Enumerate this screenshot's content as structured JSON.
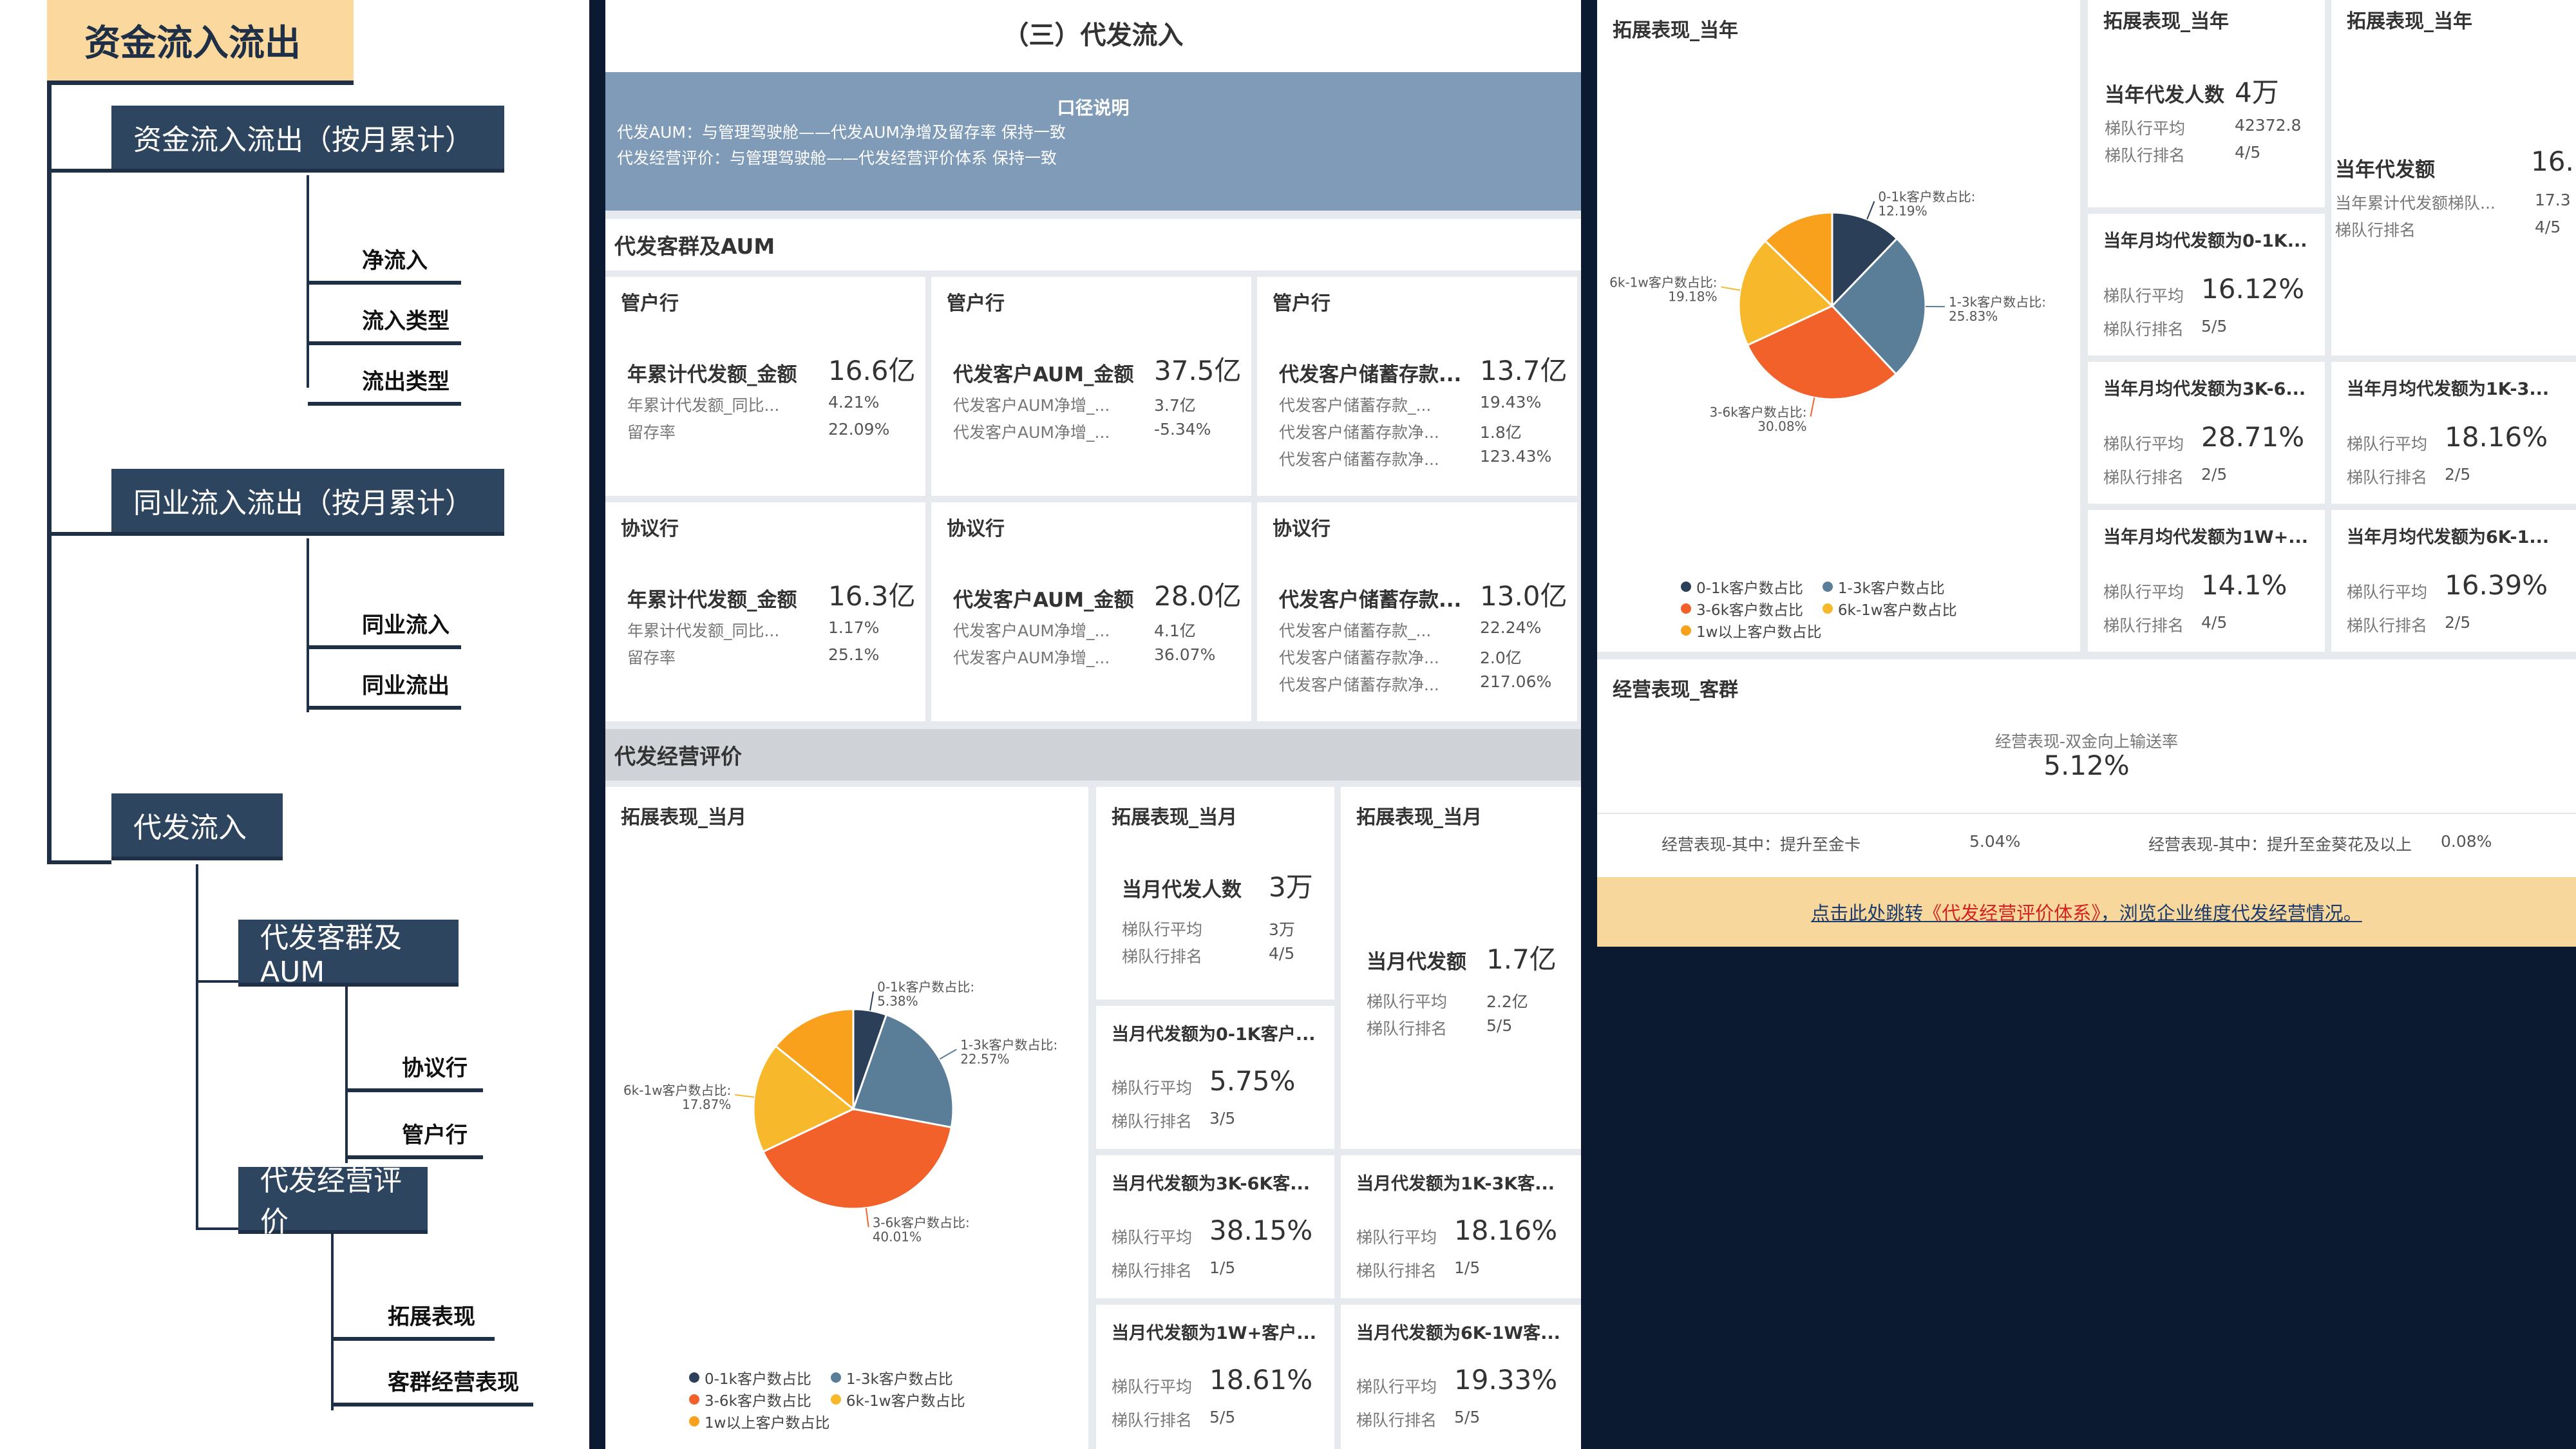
{
  "tree": {
    "root": "资金流入流出",
    "nodes": {
      "flow_monthly": "资金流入流出（按月累计）",
      "interbank_monthly": "同业流入流出（按月累计）",
      "payroll_inflow": "代发流入",
      "payroll_aum": "代发客群及AUM",
      "payroll_eval": "代发经营评价"
    },
    "leaves": {
      "net_inflow": "净流入",
      "inflow_type": "流入类型",
      "outflow_type": "流出类型",
      "interbank_in": "同业流入",
      "interbank_out": "同业流出",
      "agreement_bank": "协议行",
      "custodian_bank": "管户行",
      "expansion": "拓展表现",
      "customer_ops": "客群经营表现"
    }
  },
  "mid": {
    "title": "（三）代发流入",
    "note": {
      "title": "口径说明",
      "line1": "代发AUM：与管理驾驶舱——代发AUM净增及留存率 保持一致",
      "line2": "代发经营评价：与管理驾驶舱——代发经营评价体系 保持一致"
    },
    "section_aum": "代发客群及AUM",
    "cards": [
      {
        "title": "管户行",
        "main_label": "年累计代发额_金额",
        "main_value": "16.6亿",
        "rows": [
          {
            "label": "年累计代发额_同比...",
            "value": "4.21%"
          },
          {
            "label": "留存率",
            "value": "22.09%"
          }
        ]
      },
      {
        "title": "管户行",
        "main_label": "代发客户AUM_金额",
        "main_value": "37.5亿",
        "rows": [
          {
            "label": "代发客户AUM净增_...",
            "value": "3.7亿"
          },
          {
            "label": "代发客户AUM净增_...",
            "value": "-5.34%"
          }
        ]
      },
      {
        "title": "管户行",
        "main_label": "代发客户储蓄存款...",
        "main_value": "13.7亿",
        "rows": [
          {
            "label": "代发客户储蓄存款_...",
            "value": "19.43%"
          },
          {
            "label": "代发客户储蓄存款净...",
            "value": "1.8亿"
          },
          {
            "label": "代发客户储蓄存款净...",
            "value": "123.43%"
          }
        ]
      },
      {
        "title": "协议行",
        "main_label": "年累计代发额_金额",
        "main_value": "16.3亿",
        "rows": [
          {
            "label": "年累计代发额_同比...",
            "value": "1.17%"
          },
          {
            "label": "留存率",
            "value": "25.1%"
          }
        ]
      },
      {
        "title": "协议行",
        "main_label": "代发客户AUM_金额",
        "main_value": "28.0亿",
        "rows": [
          {
            "label": "代发客户AUM净增_...",
            "value": "4.1亿"
          },
          {
            "label": "代发客户AUM净增_...",
            "value": "36.07%"
          }
        ]
      },
      {
        "title": "协议行",
        "main_label": "代发客户储蓄存款...",
        "main_value": "13.0亿",
        "rows": [
          {
            "label": "代发客户储蓄存款_...",
            "value": "22.24%"
          },
          {
            "label": "代发客户储蓄存款净...",
            "value": "2.0亿"
          },
          {
            "label": "代发客户储蓄存款净...",
            "value": "217.06%"
          }
        ]
      }
    ],
    "section_eval": "代发经营评价",
    "month": {
      "pie_title": "拓展表现_当月",
      "count_card": {
        "title": "拓展表现_当月",
        "main_label": "当月代发人数",
        "main_value": "3万",
        "avg_label": "梯队行平均",
        "avg_value": "3万",
        "rank_label": "梯队行排名",
        "rank_value": "4/5"
      },
      "amount_card": {
        "title": "拓展表现_当月",
        "main_label": "当月代发额",
        "main_value": "1.7亿",
        "avg_label": "梯队行平均",
        "avg_value": "2.2亿",
        "rank_label": "梯队行排名",
        "rank_value": "5/5"
      },
      "small": [
        {
          "title": "当月代发额为0-1K客户...",
          "avg_label": "梯队行平均",
          "value": "5.75%",
          "rank_label": "梯队行排名",
          "rank": "3/5"
        },
        {
          "title": "当月代发额为3K-6K客...",
          "avg_label": "梯队行平均",
          "value": "38.15%",
          "rank_label": "梯队行排名",
          "rank": "1/5"
        },
        {
          "title": "当月代发额为1K-3K客...",
          "avg_label": "梯队行平均",
          "value": "18.16%",
          "rank_label": "梯队行排名",
          "rank": "1/5"
        },
        {
          "title": "当月代发额为1W+客户...",
          "avg_label": "梯队行平均",
          "value": "18.61%",
          "rank_label": "梯队行排名",
          "rank": "5/5"
        },
        {
          "title": "当月代发额为6K-1W客...",
          "avg_label": "梯队行平均",
          "value": "19.33%",
          "rank_label": "梯队行排名",
          "rank": "5/5"
        }
      ]
    }
  },
  "right": {
    "pie_title": "拓展表现_当年",
    "count_card": {
      "title": "拓展表现_当年",
      "main_label": "当年代发人数",
      "main_value": "4万",
      "avg_label": "梯队行平均",
      "avg_value": "42372.8",
      "rank_label": "梯队行排名",
      "rank_value": "4/5"
    },
    "amount_card": {
      "title": "拓展表现_当年",
      "main_label": "当年代发额",
      "main_value": "16.",
      "avg_label": "当年累计代发额梯队...",
      "avg_value": "17.3",
      "rank_label": "梯队行排名",
      "rank_value": "4/5"
    },
    "small": [
      {
        "title": "当年月均代发额为0-1K...",
        "avg_label": "梯队行平均",
        "value": "16.12%",
        "rank_label": "梯队行排名",
        "rank": "5/5"
      },
      {
        "title": "当年月均代发额为3K-6...",
        "avg_label": "梯队行平均",
        "value": "28.71%",
        "rank_label": "梯队行排名",
        "rank": "2/5"
      },
      {
        "title": "当年月均代发额为1K-3...",
        "avg_label": "梯队行平均",
        "value": "18.16%",
        "rank_label": "梯队行排名",
        "rank": "2/5"
      },
      {
        "title": "当年月均代发额为1W+...",
        "avg_label": "梯队行平均",
        "value": "14.1%",
        "rank_label": "梯队行排名",
        "rank": "4/5"
      },
      {
        "title": "当年月均代发额为6K-1...",
        "avg_label": "梯队行平均",
        "value": "16.39%",
        "rank_label": "梯队行排名",
        "rank": "2/5"
      }
    ],
    "ops": {
      "title": "经营表现_客群",
      "center_label": "经营表现-双金向上输送率",
      "center_value": "5.12%",
      "left_label": "经营表现-其中：提升至金卡",
      "left_value": "5.04%",
      "right_label": "经营表现-其中：提升至金葵花及以上",
      "right_value": "0.08%"
    },
    "jump": {
      "prefix": "点击此处跳转",
      "link": "《代发经营评价体系》",
      "suffix": "，浏览企业维度代发经营情况。"
    }
  },
  "legend": {
    "a": "0-1k客户数占比",
    "b": "1-3k客户数占比",
    "c": "3-6k客户数占比",
    "d": "6k-1w客户数占比",
    "e": "1w以上客户数占比"
  },
  "colors": {
    "c01k": "#2b3f58",
    "c13k": "#5b7e98",
    "c36k": "#f2612a",
    "c6k1w": "#f7b92b",
    "c1w": "#f9a11c"
  },
  "chart_data": [
    {
      "type": "pie",
      "title": "拓展表现_当月",
      "categories": [
        "0-1k客户数占比",
        "1-3k客户数占比",
        "3-6k客户数占比",
        "6k-1w客户数占比",
        "1w以上客户数占比"
      ],
      "values": [
        5.38,
        22.57,
        40.01,
        17.87,
        14.17
      ],
      "labels": [
        "0-1k客户数占比: 5.38%",
        "1-3k客户数占比: 22.57%",
        "3-6k客户数占比: 40.01%",
        "6k-1w客户数占比: 17.87%"
      ],
      "legend": "bottom"
    },
    {
      "type": "pie",
      "title": "拓展表现_当年",
      "categories": [
        "0-1k客户数占比",
        "1-3k客户数占比",
        "3-6k客户数占比",
        "6k-1w客户数占比",
        "1w以上客户数占比"
      ],
      "values": [
        12.19,
        25.83,
        30.08,
        19.18,
        12.72
      ],
      "labels": [
        "0-1k客户数占比: 12.19%",
        "1-3k客户数占比: 25.83%",
        "3-6k客户数占比: 30.08%",
        "6k-1w客户数占比: 19.18%"
      ],
      "legend": "bottom"
    }
  ]
}
